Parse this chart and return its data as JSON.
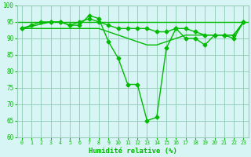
{
  "line1": {
    "x": [
      0,
      1,
      2,
      3,
      4,
      5,
      6,
      7,
      8,
      9,
      10,
      11,
      12,
      13,
      14,
      15,
      16,
      17,
      18,
      19,
      20,
      21,
      22,
      23
    ],
    "y": [
      93,
      94,
      95,
      95,
      95,
      94,
      94,
      97,
      96,
      89,
      84,
      76,
      76,
      65,
      66,
      87,
      93,
      90,
      90,
      88,
      91,
      91,
      90,
      95
    ]
  },
  "line2": {
    "x": [
      0,
      1,
      2,
      3,
      4,
      5,
      6,
      7,
      8,
      9,
      10,
      11,
      12,
      13,
      14,
      15,
      16,
      17,
      18,
      19,
      20,
      21,
      22,
      23
    ],
    "y": [
      93,
      93,
      93,
      93,
      93,
      93,
      93,
      93,
      93,
      92,
      91,
      90,
      89,
      88,
      88,
      89,
      90,
      91,
      91,
      91,
      91,
      91,
      91,
      95
    ]
  },
  "line3": {
    "x": [
      0,
      3,
      4,
      5,
      6,
      7,
      8,
      9,
      10,
      11,
      12,
      13,
      14,
      15,
      16,
      17,
      18,
      19,
      20,
      21,
      22,
      23
    ],
    "y": [
      93,
      95,
      95,
      94,
      95,
      96,
      95,
      94,
      93,
      93,
      93,
      93,
      92,
      92,
      93,
      93,
      92,
      91,
      91,
      91,
      91,
      95
    ]
  },
  "hline_y": 95,
  "color": "#00bb00",
  "bg_color": "#d8f5f5",
  "grid_color": "#99ccbb",
  "xlabel": "Humidité relative (%)",
  "ylim": [
    60,
    100
  ],
  "xlim_min": -0.5,
  "xlim_max": 23.5,
  "yticks": [
    60,
    65,
    70,
    75,
    80,
    85,
    90,
    95,
    100
  ],
  "xticks": [
    0,
    1,
    2,
    3,
    4,
    5,
    6,
    7,
    8,
    9,
    10,
    11,
    12,
    13,
    14,
    15,
    16,
    17,
    18,
    19,
    20,
    21,
    22,
    23
  ],
  "marker": "D",
  "markersize": 2.5,
  "linewidth": 1.0
}
